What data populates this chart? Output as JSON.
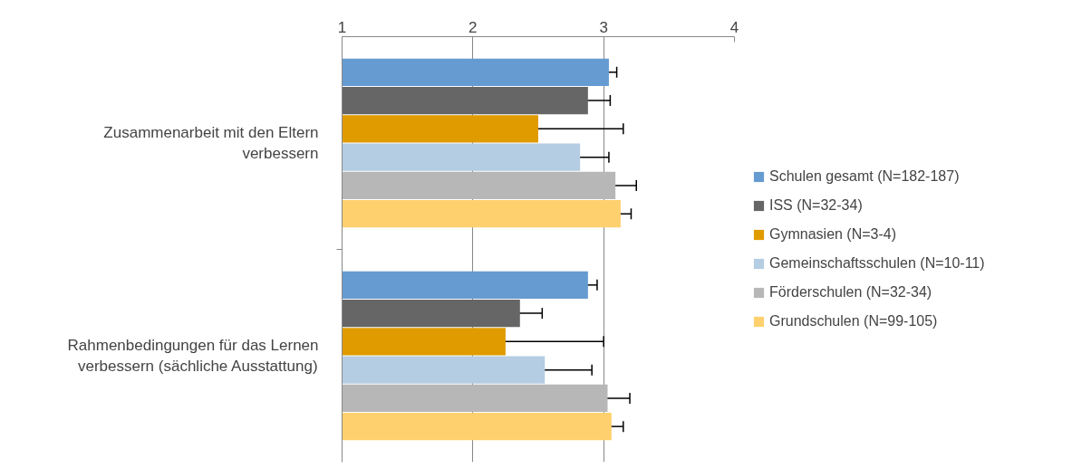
{
  "chart_data": {
    "type": "bar",
    "orientation": "horizontal",
    "categories": [
      "Zusammenarbeit mit den Eltern verbessern",
      "Rahmenbedingungen für das Lernen verbessern (sächliche Ausstattung)"
    ],
    "xlim": [
      1,
      4
    ],
    "xticks": [
      1,
      2,
      3,
      4
    ],
    "grid": "x",
    "legend": "right",
    "series": [
      {
        "name": "Schulen gesamt (N=182-187)",
        "color": "#659bd0",
        "values": [
          3.04,
          2.88
        ],
        "errors": [
          0.06,
          0.07
        ]
      },
      {
        "name": "ISS (N=32-34)",
        "color": "#666666",
        "values": [
          2.88,
          2.36
        ],
        "errors": [
          0.17,
          0.17
        ]
      },
      {
        "name": "Gymnasien (N=3-4)",
        "color": "#e09b00",
        "values": [
          2.5,
          2.25
        ],
        "errors": [
          0.65,
          0.75
        ]
      },
      {
        "name": "Gemeinschaftsschulen (N=10-11)",
        "color": "#b4cde3",
        "values": [
          2.82,
          2.55
        ],
        "errors": [
          0.22,
          0.36
        ]
      },
      {
        "name": "Förderschulen (N=32-34)",
        "color": "#b7b7b7",
        "values": [
          3.09,
          3.03
        ],
        "errors": [
          0.16,
          0.17
        ]
      },
      {
        "name": "Grundschulen (N=99-105)",
        "color": "#ffd06e",
        "values": [
          3.13,
          3.06
        ],
        "errors": [
          0.08,
          0.09
        ]
      }
    ]
  }
}
